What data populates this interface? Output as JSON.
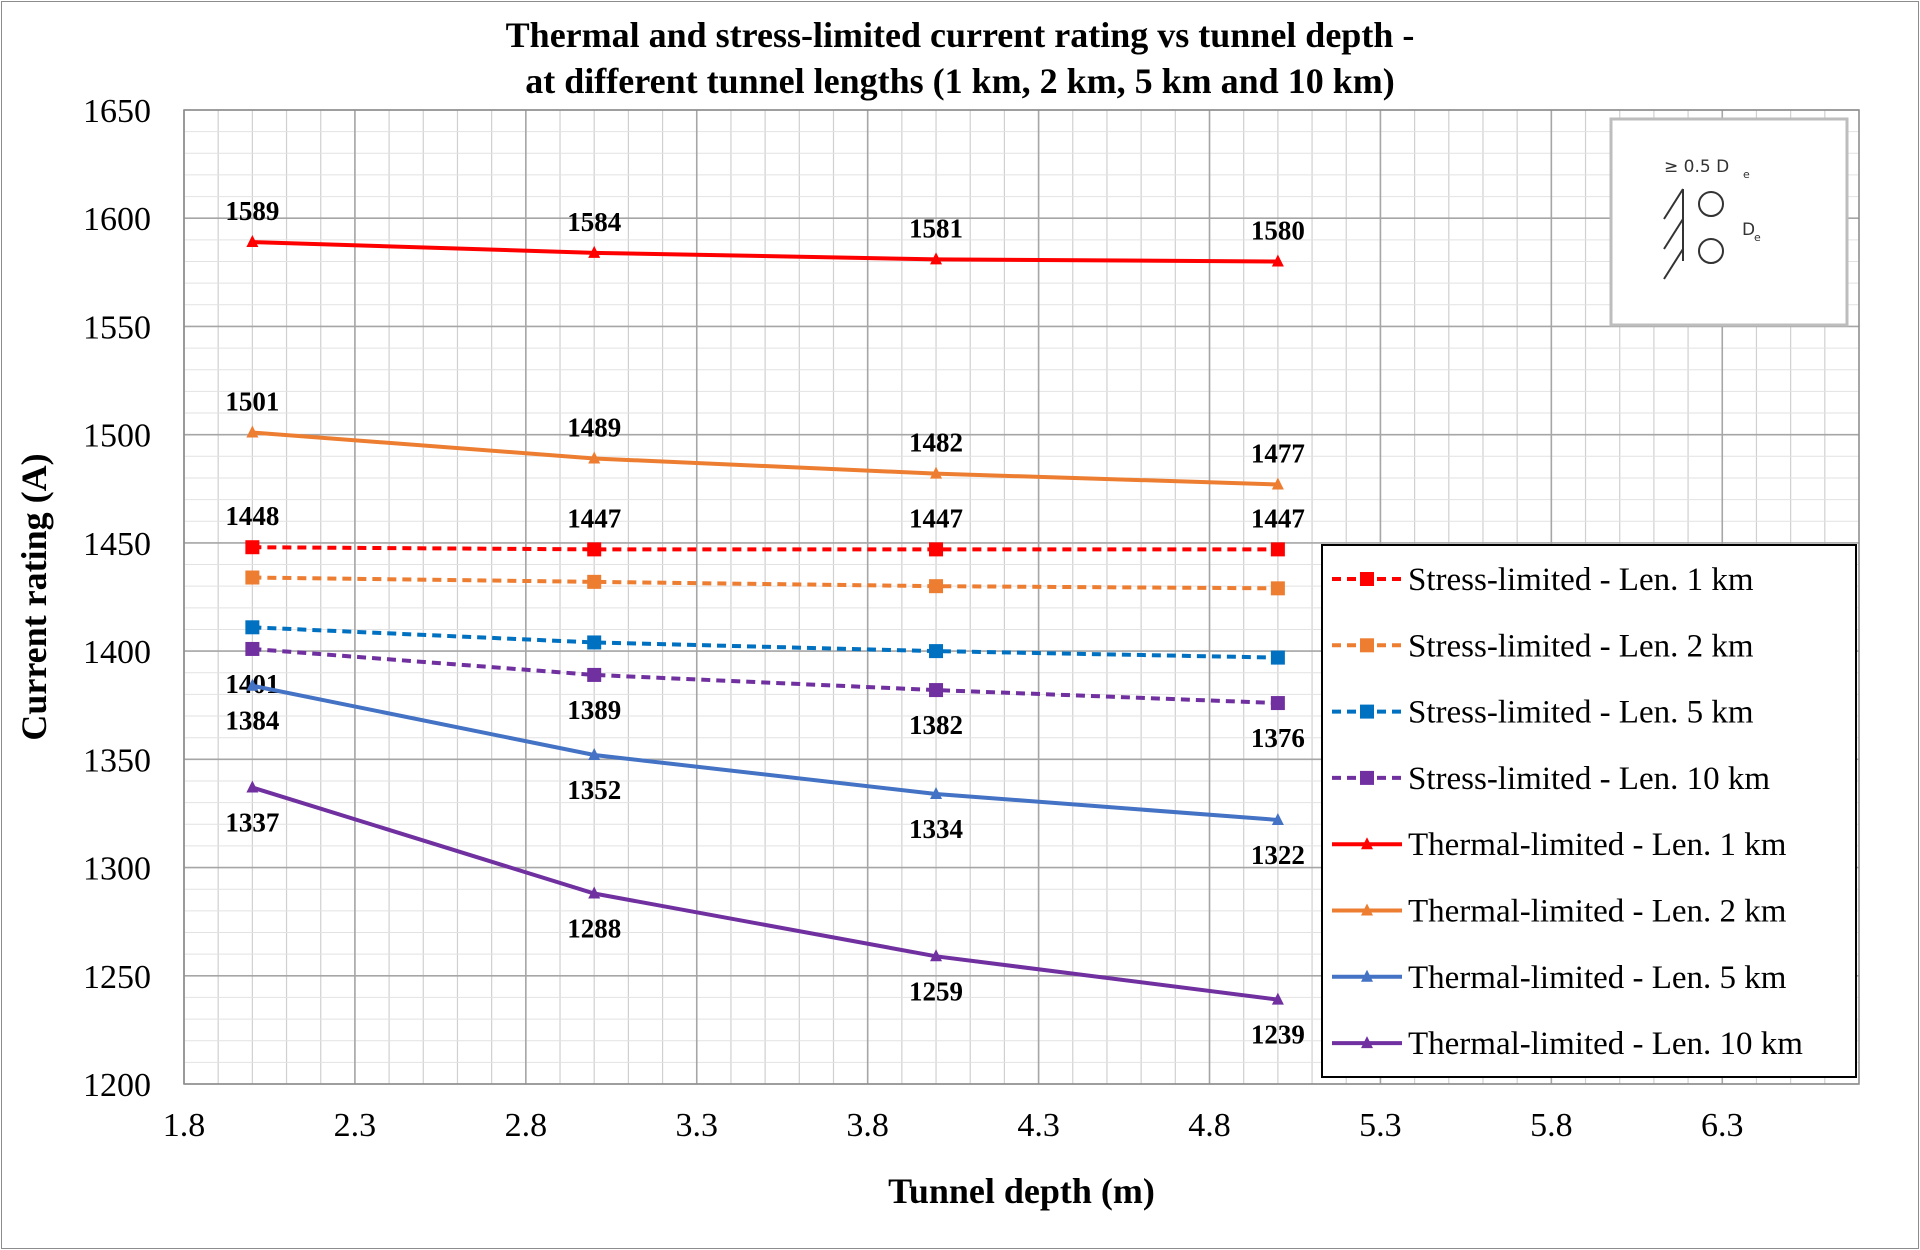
{
  "chart_data": {
    "type": "line",
    "title_line1": "Thermal and stress-limited current rating vs tunnel depth -",
    "title_line2": "at different tunnel lengths (1 km, 2 km, 5 km and 10 km)",
    "xlabel": "Tunnel depth (m)",
    "ylabel": "Current rating (A)",
    "xlim": [
      1.8,
      6.7
    ],
    "ylim": [
      1200,
      1650
    ],
    "x_ticks": [
      "1.8",
      "2.3",
      "2.8",
      "3.3",
      "3.8",
      "4.3",
      "4.8",
      "5.3",
      "5.8",
      "6.3"
    ],
    "y_ticks": [
      "1200",
      "1250",
      "1300",
      "1350",
      "1400",
      "1450",
      "1500",
      "1550",
      "1600",
      "1650"
    ],
    "grid": "major and minor",
    "legend_position": "bottom-right",
    "x": [
      2,
      3,
      4,
      5
    ],
    "series": [
      {
        "name": "Stress-limited - Len. 1 km",
        "values": [
          1448,
          1447,
          1447,
          1447
        ],
        "color": "#ff0000",
        "dash": true,
        "marker": "square",
        "labels": [
          "1448",
          "1447",
          "1447",
          "1447"
        ],
        "label_pos": "above"
      },
      {
        "name": "Stress-limited - Len. 2 km",
        "values": [
          1434,
          1432,
          1430,
          1429
        ],
        "color": "#ed7d31",
        "dash": true,
        "marker": "square",
        "labels": [],
        "label_pos": "above"
      },
      {
        "name": "Stress-limited - Len. 5 km",
        "values": [
          1411,
          1404,
          1400,
          1397
        ],
        "color": "#0070c0",
        "dash": true,
        "marker": "square",
        "labels": [],
        "label_pos": "above"
      },
      {
        "name": "Stress-limited - Len. 10 km",
        "values": [
          1401,
          1389,
          1382,
          1376
        ],
        "color": "#7030a0",
        "dash": true,
        "marker": "square",
        "labels": [
          "1401",
          "1389",
          "1382",
          "1376"
        ],
        "label_pos": "below"
      },
      {
        "name": "Thermal-limited - Len. 1 km",
        "values": [
          1589,
          1584,
          1581,
          1580
        ],
        "color": "#ff0000",
        "dash": false,
        "marker": "triangle",
        "labels": [
          "1589",
          "1584",
          "1581",
          "1580"
        ],
        "label_pos": "above"
      },
      {
        "name": "Thermal-limited - Len. 2 km",
        "values": [
          1501,
          1489,
          1482,
          1477
        ],
        "color": "#ed7d31",
        "dash": false,
        "marker": "triangle",
        "labels": [
          "1501",
          "1489",
          "1482",
          "1477"
        ],
        "label_pos": "above"
      },
      {
        "name": "Thermal-limited - Len. 5 km",
        "values": [
          1384,
          1352,
          1334,
          1322
        ],
        "color": "#4472c4",
        "dash": false,
        "marker": "triangle",
        "labels": [
          "1384",
          "1352",
          "1334",
          "1322"
        ],
        "label_pos": "below"
      },
      {
        "name": "Thermal-limited - Len. 10 km",
        "values": [
          1337,
          1288,
          1259,
          1239
        ],
        "color": "#7030a0",
        "dash": false,
        "marker": "triangle",
        "labels": [
          "1337",
          "1288",
          "1259",
          "1239"
        ],
        "label_pos": "below"
      }
    ],
    "inset": {
      "spacing_label": "≥ 0.5 D",
      "spacing_sub": "e",
      "diameter_label": "D",
      "diameter_sub": "e"
    }
  }
}
